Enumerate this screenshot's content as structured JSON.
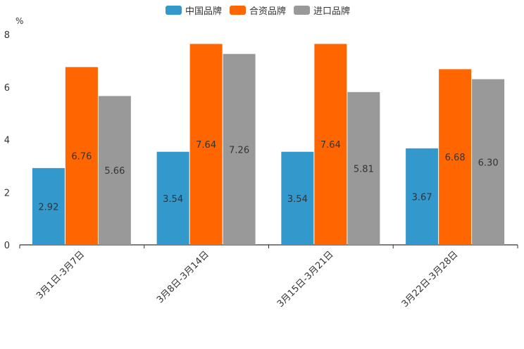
{
  "chart_data": {
    "type": "bar",
    "title": "",
    "xlabel": "",
    "ylabel": "%",
    "ylim": [
      0,
      8
    ],
    "yticks": [
      0,
      2,
      4,
      6,
      8
    ],
    "grid": false,
    "legend_position": "top-center",
    "categories": [
      "3月1日-3月7日",
      "3月8日-3月14日",
      "3月15日-3月21日",
      "3月22日-3月28日"
    ],
    "series": [
      {
        "name": "中国品牌",
        "color": "#3398CC",
        "values": [
          2.92,
          3.54,
          3.54,
          3.67
        ],
        "labels": [
          "2.92",
          "3.54",
          "3.54",
          "3.67"
        ]
      },
      {
        "name": "合资品牌",
        "color": "#FF6600",
        "values": [
          6.76,
          7.64,
          7.64,
          6.68
        ],
        "labels": [
          "6.76",
          "7.64",
          "7.64",
          "6.68"
        ]
      },
      {
        "name": "进口品牌",
        "color": "#999999",
        "values": [
          5.66,
          7.26,
          5.81,
          6.3
        ],
        "labels": [
          "5.66",
          "7.26",
          "5.81",
          "6.30"
        ]
      }
    ]
  }
}
